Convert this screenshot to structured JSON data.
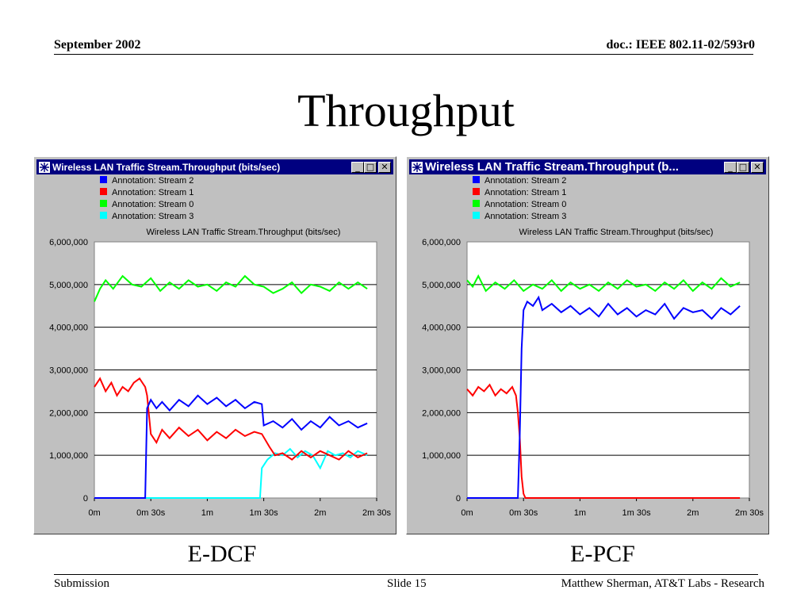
{
  "header": {
    "date": "September 2002",
    "doc": "doc.: IEEE 802.11-02/593r0"
  },
  "slide_title": "Throughput",
  "captions": [
    "E-DCF",
    "E-PCF"
  ],
  "footer": {
    "left": "Submission",
    "center": "Slide 15",
    "right": "Matthew Sherman, AT&T Labs - Research"
  },
  "windows": [
    {
      "title": "Wireless LAN Traffic Stream.Throughput (bits/sec)",
      "buttons": [
        "_",
        "□",
        "✕"
      ]
    },
    {
      "title": "Wireless LAN Traffic Stream.Throughput (b...",
      "buttons": [
        "_",
        "□",
        "✕"
      ]
    }
  ],
  "colors": {
    "stream2": "#0000ff",
    "stream1": "#ff0000",
    "stream0": "#00ff00",
    "stream3": "#00ffff",
    "titlebar": "#000080",
    "window": "#c0c0c0"
  },
  "chart_data": [
    {
      "type": "line",
      "title": "Wireless LAN Traffic Stream.Throughput (bits/sec)",
      "xlabel": "",
      "ylabel": "",
      "xlim": [
        0,
        150
      ],
      "ylim": [
        0,
        6000000
      ],
      "yticks": [
        "0",
        "1,000,000",
        "2,000,000",
        "3,000,000",
        "4,000,000",
        "5,000,000",
        "6,000,000"
      ],
      "xticks": [
        "0m",
        "0m 30s",
        "1m",
        "1m 30s",
        "2m",
        "2m 30s"
      ],
      "grid": "horizontal",
      "legend": "top",
      "series": [
        {
          "name": "Annotation:  Stream 2",
          "color": "#0000ff",
          "x": [
            0,
            10,
            20,
            27,
            28,
            30,
            33,
            36,
            40,
            45,
            50,
            55,
            60,
            65,
            70,
            75,
            80,
            85,
            89,
            90,
            95,
            100,
            105,
            110,
            115,
            120,
            125,
            130,
            135,
            140,
            145
          ],
          "y": [
            0,
            0,
            0,
            0,
            2100000,
            2300000,
            2100000,
            2250000,
            2050000,
            2300000,
            2150000,
            2400000,
            2200000,
            2350000,
            2150000,
            2300000,
            2100000,
            2250000,
            2200000,
            1700000,
            1800000,
            1650000,
            1850000,
            1600000,
            1800000,
            1650000,
            1900000,
            1700000,
            1800000,
            1650000,
            1750000
          ]
        },
        {
          "name": "Annotation:  Stream 1",
          "color": "#ff0000",
          "x": [
            0,
            3,
            6,
            9,
            12,
            15,
            18,
            21,
            24,
            27,
            28,
            30,
            33,
            36,
            40,
            45,
            50,
            55,
            60,
            65,
            70,
            75,
            80,
            85,
            89,
            93,
            96,
            100,
            105,
            110,
            115,
            120,
            125,
            130,
            135,
            140,
            145
          ],
          "y": [
            2600000,
            2800000,
            2500000,
            2700000,
            2400000,
            2600000,
            2500000,
            2700000,
            2800000,
            2600000,
            2400000,
            1500000,
            1300000,
            1600000,
            1400000,
            1650000,
            1450000,
            1600000,
            1350000,
            1550000,
            1400000,
            1600000,
            1450000,
            1550000,
            1500000,
            1200000,
            1000000,
            1050000,
            900000,
            1100000,
            950000,
            1100000,
            1000000,
            900000,
            1100000,
            950000,
            1050000
          ]
        },
        {
          "name": "Annotation:  Stream 0",
          "color": "#00ff00",
          "x": [
            0,
            3,
            6,
            10,
            15,
            20,
            25,
            30,
            35,
            40,
            45,
            50,
            55,
            60,
            65,
            70,
            75,
            80,
            85,
            90,
            95,
            100,
            105,
            110,
            115,
            120,
            125,
            130,
            135,
            140,
            145
          ],
          "y": [
            4600000,
            4900000,
            5100000,
            4900000,
            5200000,
            5000000,
            4950000,
            5150000,
            4850000,
            5050000,
            4900000,
            5100000,
            4950000,
            5000000,
            4850000,
            5050000,
            4950000,
            5200000,
            5000000,
            4950000,
            4800000,
            4900000,
            5050000,
            4800000,
            5000000,
            4950000,
            4850000,
            5050000,
            4900000,
            5050000,
            4900000
          ]
        },
        {
          "name": "Annotation:  Stream 3",
          "color": "#00ffff",
          "x": [
            0,
            20,
            40,
            60,
            80,
            88,
            89,
            92,
            96,
            100,
            104,
            108,
            112,
            116,
            120,
            124,
            128,
            132,
            136,
            140,
            145
          ],
          "y": [
            0,
            0,
            0,
            0,
            0,
            0,
            700000,
            900000,
            1050000,
            1000000,
            1150000,
            950000,
            1100000,
            1000000,
            700000,
            1100000,
            1000000,
            1050000,
            950000,
            1100000,
            1000000
          ]
        }
      ]
    },
    {
      "type": "line",
      "title": "Wireless LAN Traffic Stream.Throughput (bits/sec)",
      "xlabel": "",
      "ylabel": "",
      "xlim": [
        0,
        150
      ],
      "ylim": [
        0,
        6000000
      ],
      "yticks": [
        "0",
        "1,000,000",
        "2,000,000",
        "3,000,000",
        "4,000,000",
        "5,000,000",
        "6,000,000"
      ],
      "xticks": [
        "0m",
        "0m 30s",
        "1m",
        "1m 30s",
        "2m",
        "2m 30s"
      ],
      "grid": "horizontal",
      "legend": "top",
      "series": [
        {
          "name": "Annotation:  Stream 2",
          "color": "#0000ff",
          "x": [
            0,
            10,
            20,
            27,
            28,
            29,
            30,
            32,
            35,
            38,
            40,
            45,
            50,
            55,
            60,
            65,
            70,
            75,
            80,
            85,
            90,
            95,
            100,
            105,
            110,
            115,
            120,
            125,
            130,
            135,
            140,
            145
          ],
          "y": [
            0,
            0,
            0,
            0,
            1500000,
            3500000,
            4400000,
            4600000,
            4500000,
            4700000,
            4400000,
            4550000,
            4350000,
            4500000,
            4300000,
            4450000,
            4250000,
            4550000,
            4300000,
            4450000,
            4250000,
            4400000,
            4300000,
            4550000,
            4200000,
            4450000,
            4350000,
            4400000,
            4200000,
            4450000,
            4300000,
            4500000
          ]
        },
        {
          "name": "Annotation:  Stream 1",
          "color": "#ff0000",
          "x": [
            0,
            3,
            6,
            9,
            12,
            15,
            18,
            21,
            24,
            26,
            27,
            28,
            29,
            30,
            31,
            35,
            50,
            80,
            110,
            145
          ],
          "y": [
            2550000,
            2400000,
            2600000,
            2500000,
            2650000,
            2400000,
            2550000,
            2450000,
            2600000,
            2400000,
            2000000,
            1400000,
            500000,
            100000,
            0,
            0,
            0,
            0,
            0,
            0
          ]
        },
        {
          "name": "Annotation:  Stream 0",
          "color": "#00ff00",
          "x": [
            0,
            3,
            6,
            10,
            15,
            20,
            25,
            30,
            35,
            40,
            45,
            50,
            55,
            60,
            65,
            70,
            75,
            80,
            85,
            90,
            95,
            100,
            105,
            110,
            115,
            120,
            125,
            130,
            135,
            140,
            145
          ],
          "y": [
            5100000,
            4950000,
            5200000,
            4850000,
            5050000,
            4900000,
            5100000,
            4850000,
            5000000,
            4900000,
            5100000,
            4850000,
            5050000,
            4900000,
            5000000,
            4850000,
            5050000,
            4900000,
            5100000,
            4950000,
            5000000,
            4850000,
            5050000,
            4900000,
            5100000,
            4850000,
            5050000,
            4900000,
            5150000,
            4950000,
            5050000
          ]
        },
        {
          "name": "Annotation:  Stream 3",
          "color": "#00ffff",
          "x": [],
          "y": []
        }
      ]
    }
  ]
}
